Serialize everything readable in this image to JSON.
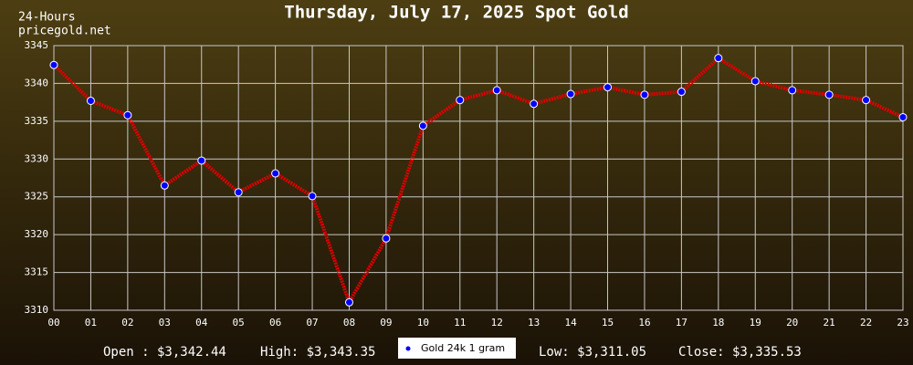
{
  "chart_data": {
    "type": "line",
    "title": "Thursday, July 17, 2025 Spot Gold",
    "corner_texts": [
      "24-Hours",
      "pricegold.net"
    ],
    "categories": [
      "00",
      "01",
      "02",
      "03",
      "04",
      "05",
      "06",
      "07",
      "08",
      "09",
      "10",
      "11",
      "12",
      "13",
      "14",
      "15",
      "16",
      "17",
      "18",
      "19",
      "20",
      "21",
      "22",
      "23"
    ],
    "series": [
      {
        "name": "Gold 24k 1 gram",
        "color": "#dd0000",
        "marker_color": "#0000ff",
        "values": [
          3342.44,
          3337.7,
          3335.8,
          3326.5,
          3329.8,
          3325.6,
          3328.1,
          3325.1,
          3311.05,
          3319.5,
          3334.4,
          3337.8,
          3339.1,
          3337.3,
          3338.6,
          3339.5,
          3338.5,
          3338.9,
          3343.35,
          3340.3,
          3339.1,
          3338.5,
          3337.8,
          3335.53
        ]
      }
    ],
    "ylim": [
      3310,
      3345
    ],
    "yticks": [
      3310,
      3315,
      3320,
      3325,
      3330,
      3335,
      3340,
      3345
    ],
    "grid": true,
    "stats": [
      "Open : $3,342.44",
      "High: $3,343.35",
      "Low: $3,311.05",
      "Close: $3,335.53"
    ]
  }
}
